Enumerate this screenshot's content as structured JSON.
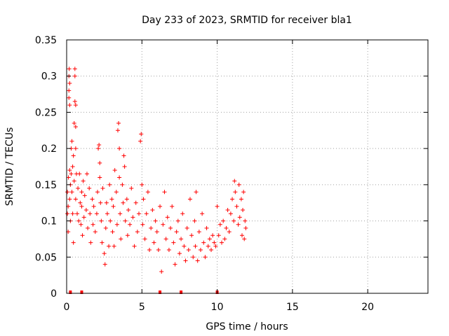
{
  "chart_data": {
    "type": "scatter",
    "title": "Day 233 of 2023, SRMTID for receiver bla1",
    "xlabel": "GPS time / hours",
    "ylabel": "SRMTID / TECUs",
    "xlim": [
      0,
      24
    ],
    "ylim": [
      0,
      0.35
    ],
    "x_ticks": [
      0,
      5,
      10,
      15,
      20
    ],
    "x_tick_labels": [
      "0",
      "5",
      "10",
      "15",
      "20"
    ],
    "y_ticks": [
      0,
      0.05,
      0.1,
      0.15,
      0.2,
      0.25,
      0.3,
      0.35
    ],
    "y_tick_labels": [
      "0",
      "0.05",
      "0.1",
      "0.15",
      "0.2",
      "0.25",
      "0.3",
      "0.35"
    ],
    "grid": true,
    "marker": "+",
    "series": [
      {
        "name": "SRMTID",
        "color": "#ff0000",
        "points": [
          [
            0.05,
            0.11
          ],
          [
            0.05,
            0.14
          ],
          [
            0.1,
            0.085
          ],
          [
            0.1,
            0.12
          ],
          [
            0.12,
            0.16
          ],
          [
            0.15,
            0.27
          ],
          [
            0.15,
            0.28
          ],
          [
            0.15,
            0.3
          ],
          [
            0.17,
            0.31
          ],
          [
            0.2,
            0.29
          ],
          [
            0.2,
            0.26
          ],
          [
            0.2,
            0.17
          ],
          [
            0.2,
            0.13
          ],
          [
            0.25,
            0.15
          ],
          [
            0.25,
            0.1
          ],
          [
            0.3,
            0.2
          ],
          [
            0.3,
            0.165
          ],
          [
            0.35,
            0.14
          ],
          [
            0.35,
            0.21
          ],
          [
            0.4,
            0.175
          ],
          [
            0.4,
            0.11
          ],
          [
            0.45,
            0.07
          ],
          [
            0.45,
            0.19
          ],
          [
            0.5,
            0.235
          ],
          [
            0.5,
            0.155
          ],
          [
            0.55,
            0.3
          ],
          [
            0.55,
            0.31
          ],
          [
            0.55,
            0.265
          ],
          [
            0.6,
            0.26
          ],
          [
            0.6,
            0.23
          ],
          [
            0.6,
            0.2
          ],
          [
            0.6,
            0.13
          ],
          [
            0.65,
            0.165
          ],
          [
            0.7,
            0.11
          ],
          [
            0.75,
            0.145
          ],
          [
            0.8,
            0.1
          ],
          [
            0.85,
            0.165
          ],
          [
            0.9,
            0.125
          ],
          [
            0.95,
            0.095
          ],
          [
            1.0,
            0.14
          ],
          [
            1.0,
            0.12
          ],
          [
            1.05,
            0.08
          ],
          [
            1.1,
            0.155
          ],
          [
            1.15,
            0.105
          ],
          [
            1.2,
            0.135
          ],
          [
            1.3,
            0.115
          ],
          [
            1.35,
            0.165
          ],
          [
            1.4,
            0.09
          ],
          [
            1.5,
            0.145
          ],
          [
            1.55,
            0.11
          ],
          [
            1.6,
            0.07
          ],
          [
            1.7,
            0.13
          ],
          [
            1.75,
            0.095
          ],
          [
            1.8,
            0.12
          ],
          [
            1.9,
            0.085
          ],
          [
            2.0,
            0.11
          ],
          [
            2.05,
            0.14
          ],
          [
            2.1,
            0.2
          ],
          [
            2.15,
            0.205
          ],
          [
            2.2,
            0.18
          ],
          [
            2.2,
            0.16
          ],
          [
            2.25,
            0.125
          ],
          [
            2.3,
            0.1
          ],
          [
            2.35,
            0.07
          ],
          [
            2.4,
            0.145
          ],
          [
            2.5,
            0.055
          ],
          [
            2.55,
            0.04
          ],
          [
            2.6,
            0.09
          ],
          [
            2.65,
            0.125
          ],
          [
            2.7,
            0.11
          ],
          [
            2.8,
            0.065
          ],
          [
            2.85,
            0.15
          ],
          [
            2.9,
            0.1
          ],
          [
            3.0,
            0.13
          ],
          [
            3.05,
            0.085
          ],
          [
            3.1,
            0.12
          ],
          [
            3.15,
            0.065
          ],
          [
            3.2,
            0.17
          ],
          [
            3.3,
            0.14
          ],
          [
            3.35,
            0.095
          ],
          [
            3.4,
            0.225
          ],
          [
            3.45,
            0.235
          ],
          [
            3.5,
            0.2
          ],
          [
            3.5,
            0.16
          ],
          [
            3.55,
            0.11
          ],
          [
            3.6,
            0.075
          ],
          [
            3.7,
            0.15
          ],
          [
            3.75,
            0.125
          ],
          [
            3.8,
            0.19
          ],
          [
            3.85,
            0.175
          ],
          [
            3.9,
            0.1
          ],
          [
            4.0,
            0.13
          ],
          [
            4.05,
            0.08
          ],
          [
            4.1,
            0.115
          ],
          [
            4.2,
            0.095
          ],
          [
            4.3,
            0.145
          ],
          [
            4.4,
            0.105
          ],
          [
            4.5,
            0.065
          ],
          [
            4.6,
            0.125
          ],
          [
            4.7,
            0.085
          ],
          [
            4.8,
            0.11
          ],
          [
            4.9,
            0.21
          ],
          [
            4.95,
            0.22
          ],
          [
            5.0,
            0.15
          ],
          [
            5.05,
            0.095
          ],
          [
            5.1,
            0.13
          ],
          [
            5.2,
            0.075
          ],
          [
            5.3,
            0.11
          ],
          [
            5.4,
            0.14
          ],
          [
            5.5,
            0.06
          ],
          [
            5.6,
            0.09
          ],
          [
            5.7,
            0.115
          ],
          [
            5.8,
            0.07
          ],
          [
            5.9,
            0.1
          ],
          [
            6.0,
            0.085
          ],
          [
            6.1,
            0.06
          ],
          [
            6.2,
            0.12
          ],
          [
            6.3,
            0.03
          ],
          [
            6.4,
            0.095
          ],
          [
            6.5,
            0.14
          ],
          [
            6.6,
            0.075
          ],
          [
            6.7,
            0.105
          ],
          [
            6.8,
            0.06
          ],
          [
            6.9,
            0.09
          ],
          [
            7.0,
            0.12
          ],
          [
            7.1,
            0.07
          ],
          [
            7.2,
            0.04
          ],
          [
            7.3,
            0.085
          ],
          [
            7.4,
            0.1
          ],
          [
            7.5,
            0.055
          ],
          [
            7.6,
            0.075
          ],
          [
            7.7,
            0.11
          ],
          [
            7.8,
            0.065
          ],
          [
            7.9,
            0.045
          ],
          [
            8.0,
            0.09
          ],
          [
            8.1,
            0.06
          ],
          [
            8.2,
            0.13
          ],
          [
            8.3,
            0.08
          ],
          [
            8.4,
            0.05
          ],
          [
            8.5,
            0.1
          ],
          [
            8.55,
            0.065
          ],
          [
            8.6,
            0.14
          ],
          [
            8.7,
            0.045
          ],
          [
            8.8,
            0.085
          ],
          [
            8.9,
            0.06
          ],
          [
            9.0,
            0.11
          ],
          [
            9.1,
            0.07
          ],
          [
            9.2,
            0.05
          ],
          [
            9.3,
            0.09
          ],
          [
            9.4,
            0.065
          ],
          [
            9.5,
            0.075
          ],
          [
            9.6,
            0.06
          ],
          [
            9.7,
            0.08
          ],
          [
            9.8,
            0.07
          ],
          [
            9.9,
            0.065
          ],
          [
            10.0,
            0.12
          ],
          [
            10.1,
            0.08
          ],
          [
            10.2,
            0.095
          ],
          [
            10.3,
            0.07
          ],
          [
            10.4,
            0.1
          ],
          [
            10.5,
            0.075
          ],
          [
            10.6,
            0.09
          ],
          [
            10.7,
            0.115
          ],
          [
            10.8,
            0.085
          ],
          [
            10.9,
            0.11
          ],
          [
            11.0,
            0.13
          ],
          [
            11.1,
            0.1
          ],
          [
            11.15,
            0.155
          ],
          [
            11.2,
            0.14
          ],
          [
            11.3,
            0.12
          ],
          [
            11.4,
            0.095
          ],
          [
            11.45,
            0.15
          ],
          [
            11.5,
            0.105
          ],
          [
            11.6,
            0.13
          ],
          [
            11.65,
            0.08
          ],
          [
            11.7,
            0.115
          ],
          [
            11.75,
            0.14
          ],
          [
            11.8,
            0.075
          ],
          [
            11.85,
            0.1
          ],
          [
            11.9,
            0.09
          ]
        ]
      }
    ],
    "gap_markers_x": [
      0.25,
      1.0,
      6.2,
      7.6,
      10.0
    ]
  }
}
